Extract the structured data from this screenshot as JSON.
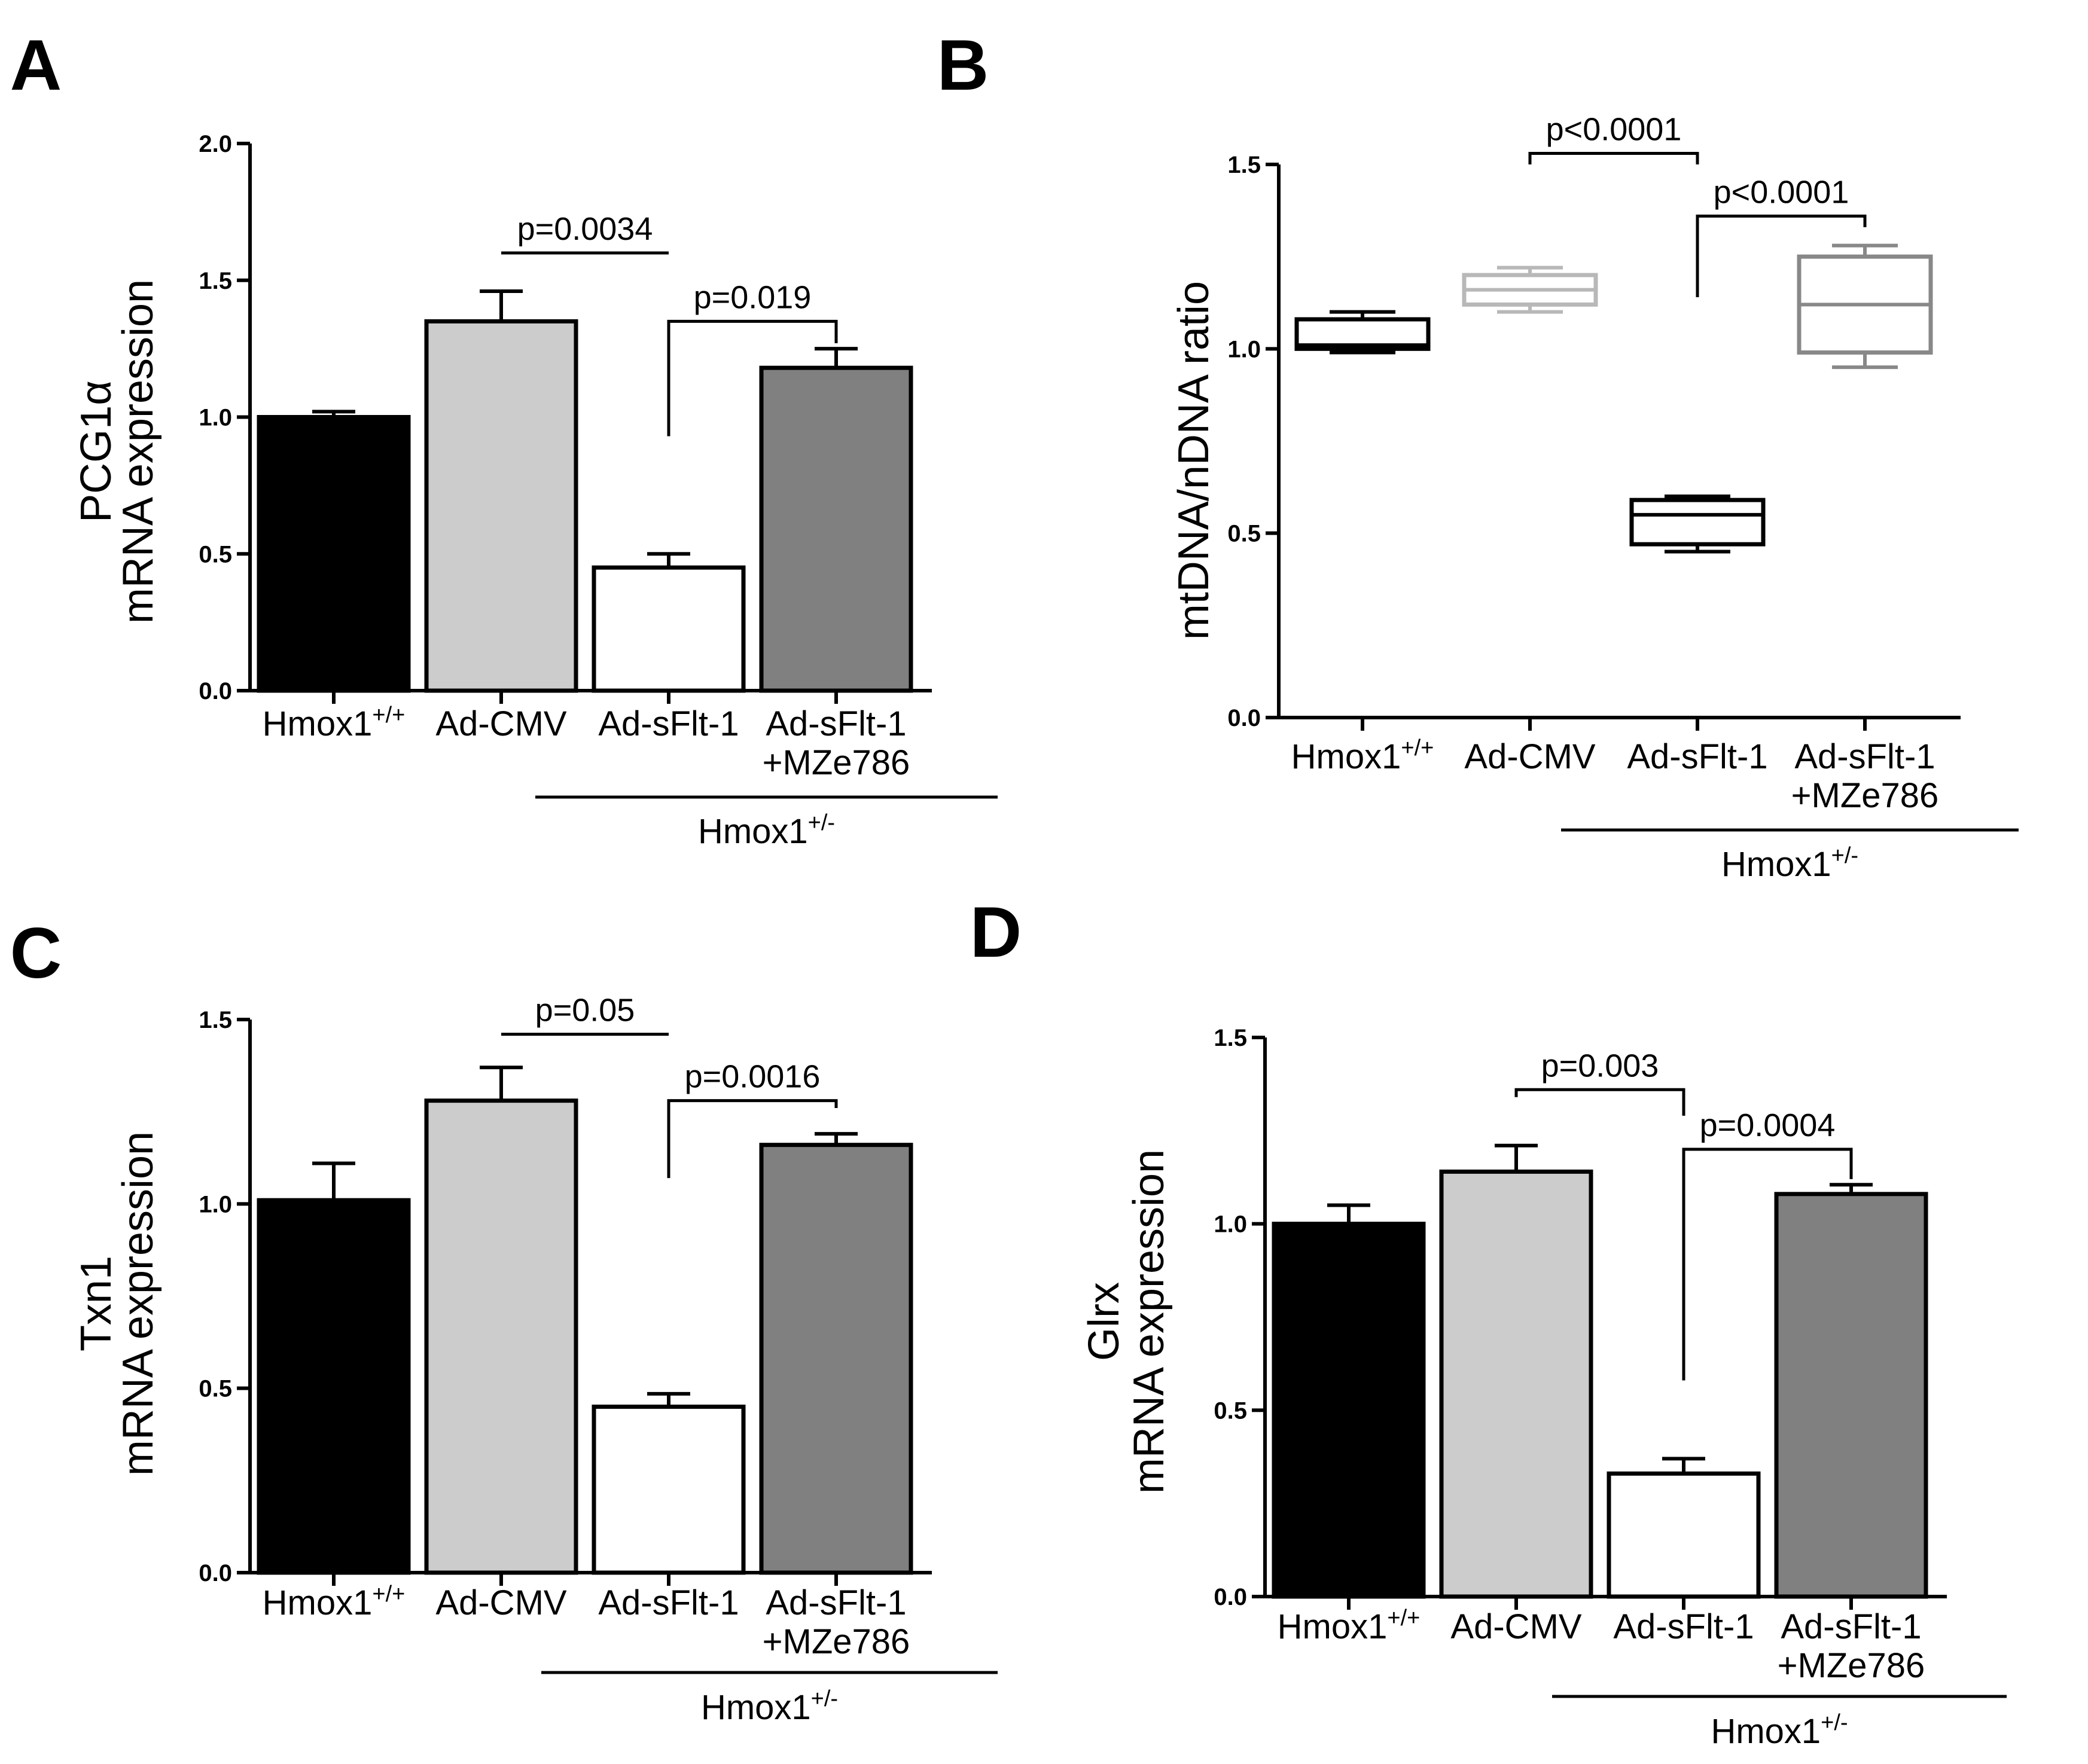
{
  "colors": {
    "wild_type": "#000000",
    "ad_cmv": "#cccccc",
    "ad_sflt1": "#ffffff",
    "ad_sflt1_mze786": "#808080",
    "box_wild_type": "#000000",
    "box_ad_cmv": "#b8b8b8",
    "box_ad_sflt1": "#000000",
    "box_ad_sflt1_mze786": "#888888"
  },
  "chart_data": [
    {
      "panel": "A",
      "type": "bar",
      "ylabel_line1": "PCG1α",
      "ylabel_line2": "mRNA expression",
      "ylim": [
        0,
        2.0
      ],
      "yticks": [
        0.0,
        0.5,
        1.0,
        1.5,
        2.0
      ],
      "ytick_labels": [
        "0.0",
        "0.5",
        "1.0",
        "1.5",
        "2.0"
      ],
      "categories": [
        {
          "base": "Hmox1",
          "sup": "+/+"
        },
        {
          "base": "Ad-CMV",
          "sup": ""
        },
        {
          "base": "Ad-sFlt-1",
          "sup": ""
        },
        {
          "base": "Ad-sFlt-1",
          "sup": "",
          "line2": "+MZe786"
        }
      ],
      "values": [
        1.0,
        1.35,
        0.45,
        1.18
      ],
      "errors": [
        0.02,
        0.11,
        0.05,
        0.07
      ],
      "group_label": {
        "base": "Hmox1",
        "sup": "+/-",
        "from": 1,
        "to": 3
      },
      "comparisons": [
        {
          "a": 1,
          "b": 2,
          "y": 1.6,
          "label": "p=0.0034",
          "style": "line"
        },
        {
          "a": 2,
          "b": 3,
          "y": 1.35,
          "label": "p=0.019",
          "style": "bracket",
          "a_end": 0.93,
          "b_end": 1.27
        }
      ]
    },
    {
      "panel": "B",
      "type": "box",
      "ylabel_line1": "",
      "ylabel_line2": "mtDNA/nDNA ratio",
      "ylim": [
        0,
        1.5
      ],
      "yticks": [
        0.0,
        0.5,
        1.0,
        1.5
      ],
      "ytick_labels": [
        "0.0",
        "0.5",
        "1.0",
        "1.5"
      ],
      "categories": [
        {
          "base": "Hmox1",
          "sup": "+/+"
        },
        {
          "base": "Ad-CMV",
          "sup": ""
        },
        {
          "base": "Ad-sFlt-1",
          "sup": ""
        },
        {
          "base": "Ad-sFlt-1",
          "sup": "",
          "line2": "+MZe786"
        }
      ],
      "boxes": [
        {
          "min": 0.99,
          "q1": 1.0,
          "median": 1.01,
          "q3": 1.08,
          "max": 1.1
        },
        {
          "min": 1.1,
          "q1": 1.12,
          "median": 1.16,
          "q3": 1.2,
          "max": 1.22
        },
        {
          "min": 0.45,
          "q1": 0.47,
          "median": 0.55,
          "q3": 0.59,
          "max": 0.6
        },
        {
          "min": 0.95,
          "q1": 0.99,
          "median": 1.12,
          "q3": 1.25,
          "max": 1.28
        }
      ],
      "group_label": {
        "base": "Hmox1",
        "sup": "+/-",
        "from": 1,
        "to": 3
      },
      "comparisons": [
        {
          "a": 1,
          "b": 2,
          "y": 1.53,
          "label": "p<0.0001",
          "style": "bracket",
          "a_end": 1.5,
          "b_end": 1.5
        },
        {
          "a": 2,
          "b": 3,
          "y": 1.36,
          "label": "p<0.0001",
          "style": "bracket",
          "a_end": 1.14,
          "b_end": 1.33
        }
      ]
    },
    {
      "panel": "C",
      "type": "bar",
      "ylabel_line1": "Txn1",
      "ylabel_line2": "mRNA expression",
      "ylim": [
        0,
        1.5
      ],
      "yticks": [
        0.0,
        0.5,
        1.0,
        1.5
      ],
      "ytick_labels": [
        "0.0",
        "0.5",
        "1.0",
        "1.5"
      ],
      "categories": [
        {
          "base": "Hmox1",
          "sup": "+/+"
        },
        {
          "base": "Ad-CMV",
          "sup": ""
        },
        {
          "base": "Ad-sFlt-1",
          "sup": ""
        },
        {
          "base": "Ad-sFlt-1",
          "sup": "",
          "line2": "+MZe786"
        }
      ],
      "values": [
        1.01,
        1.28,
        0.45,
        1.16
      ],
      "errors": [
        0.1,
        0.09,
        0.035,
        0.03
      ],
      "group_label": {
        "base": "Hmox1",
        "sup": "+/-",
        "from": 1,
        "to": 3
      },
      "comparisons": [
        {
          "a": 1,
          "b": 2,
          "y": 1.46,
          "label": "p=0.05",
          "style": "line"
        },
        {
          "a": 2,
          "b": 3,
          "y": 1.28,
          "label": "p=0.0016",
          "style": "bracket",
          "a_end": 1.07,
          "b_end": 1.26
        }
      ]
    },
    {
      "panel": "D",
      "type": "bar",
      "ylabel_line1": "Glrx",
      "ylabel_line2": "mRNA expression",
      "ylim": [
        0,
        1.5
      ],
      "yticks": [
        0.0,
        0.5,
        1.0,
        1.5
      ],
      "ytick_labels": [
        "0.0",
        "0.5",
        "1.0",
        "1.5"
      ],
      "categories": [
        {
          "base": "Hmox1",
          "sup": "+/+"
        },
        {
          "base": "Ad-CMV",
          "sup": ""
        },
        {
          "base": "Ad-sFlt-1",
          "sup": ""
        },
        {
          "base": "Ad-sFlt-1",
          "sup": "",
          "line2": "+MZe786"
        }
      ],
      "values": [
        1.0,
        1.14,
        0.33,
        1.08
      ],
      "errors": [
        0.05,
        0.07,
        0.04,
        0.025
      ],
      "group_label": {
        "base": "Hmox1",
        "sup": "+/-",
        "from": 1,
        "to": 3
      },
      "comparisons": [
        {
          "a": 1,
          "b": 2,
          "y": 1.36,
          "label": "p=0.003",
          "style": "bracket",
          "a_end": 1.34,
          "b_end": 1.29
        },
        {
          "a": 2,
          "b": 3,
          "y": 1.2,
          "label": "p=0.0004",
          "style": "bracket",
          "a_end": 0.58,
          "b_end": 1.12
        }
      ]
    }
  ]
}
